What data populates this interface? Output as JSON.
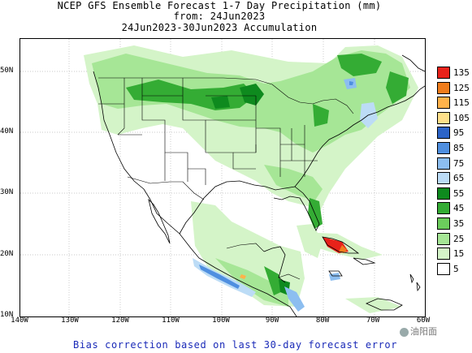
{
  "title": {
    "line1": "NCEP GFS Ensemble Forecast 1-7 Day Precipitation (mm)",
    "line2": "from: 24Jun2023",
    "line3": "24Jun2023-30Jun2023 Accumulation"
  },
  "axes": {
    "lat_labels": [
      "50N",
      "40N",
      "30N",
      "20N",
      "10N"
    ],
    "lon_labels": [
      "140W",
      "130W",
      "120W",
      "110W",
      "100W",
      "90W",
      "80W",
      "70W",
      "60W"
    ]
  },
  "legend": {
    "labels": [
      "135",
      "125",
      "115",
      "105",
      "95",
      "85",
      "75",
      "65",
      "55",
      "45",
      "35",
      "25",
      "15",
      "5"
    ],
    "colors": [
      "#e8221a",
      "#f07d1c",
      "#ffb24a",
      "#ffe08a",
      "#2c64c8",
      "#4f8fe0",
      "#8cbef0",
      "#bcdcf6",
      "#0e8a1e",
      "#34ac34",
      "#6ccc5c",
      "#a6e696",
      "#d4f4c8",
      "#ffffff"
    ]
  },
  "footer": "Bias correction based on last 30-day forecast error",
  "watermark": "油阳面"
}
